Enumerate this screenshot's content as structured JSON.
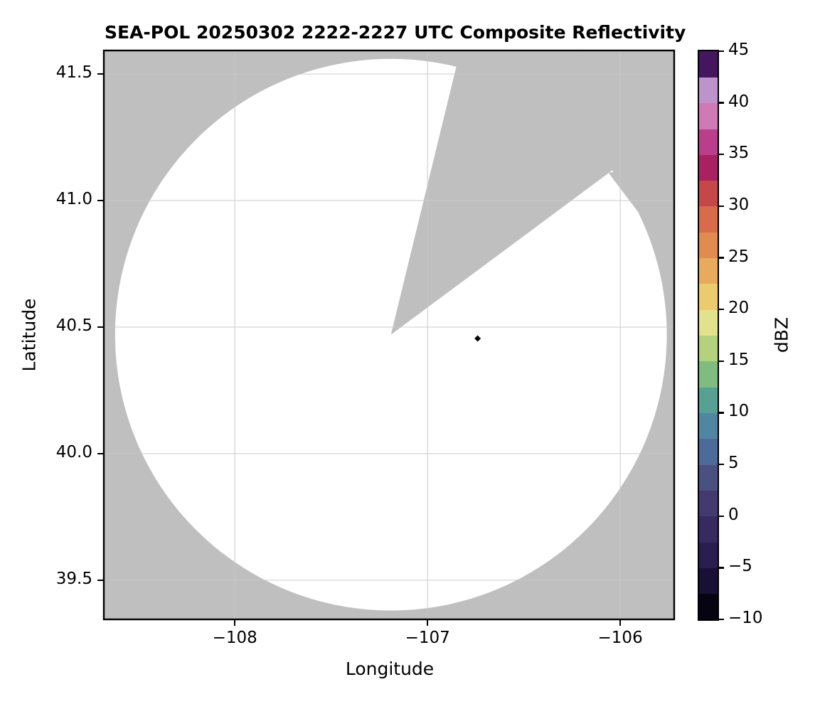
{
  "title": "SEA-POL 20250302 2222-2227 UTC Composite Reflectivity",
  "axes": {
    "xlabel": "Longitude",
    "ylabel": "Latitude",
    "x_range": [
      -108.68,
      -105.72
    ],
    "y_range": [
      39.345,
      41.593
    ],
    "x_ticks": [
      {
        "value": -108,
        "label": "−108"
      },
      {
        "value": -107,
        "label": "−107"
      },
      {
        "value": -106,
        "label": "−106"
      }
    ],
    "y_ticks": [
      {
        "value": 39.5,
        "label": "39.5"
      },
      {
        "value": 40.0,
        "label": "40.0"
      },
      {
        "value": 40.5,
        "label": "40.5"
      },
      {
        "value": 41.0,
        "label": "41.0"
      },
      {
        "value": 41.5,
        "label": "41.5"
      }
    ],
    "grid": true,
    "grid_color": "#c8c8c8",
    "border_color": "#000000"
  },
  "colorbar": {
    "label": "dBZ",
    "min": -10,
    "max": 45,
    "tick_step": 5,
    "ticks": [
      {
        "value": 45,
        "label": "45"
      },
      {
        "value": 40,
        "label": "40"
      },
      {
        "value": 35,
        "label": "35"
      },
      {
        "value": 30,
        "label": "30"
      },
      {
        "value": 25,
        "label": "25"
      },
      {
        "value": 20,
        "label": "20"
      },
      {
        "value": 15,
        "label": "15"
      },
      {
        "value": 10,
        "label": "10"
      },
      {
        "value": 5,
        "label": "5"
      },
      {
        "value": 0,
        "label": "0"
      },
      {
        "value": -5,
        "label": "−5"
      },
      {
        "value": -10,
        "label": "−10"
      }
    ],
    "band_step_dbz": 2.5,
    "band_colors_bottom_to_top": [
      "#060410",
      "#191135",
      "#2a1d50",
      "#372a60",
      "#443a70",
      "#4b5082",
      "#4d6b9a",
      "#5186a3",
      "#57a094",
      "#80bc80",
      "#b4d17e",
      "#e2e28d",
      "#ebcb6e",
      "#e8ab5d",
      "#e28b51",
      "#d76b4a",
      "#c54749",
      "#a92160",
      "#b93f8a",
      "#d07ab5",
      "#bd93cb",
      "#451660"
    ]
  },
  "chart_data": {
    "type": "heatmap",
    "subtype": "radar-composite-reflectivity-map",
    "units": "dBZ",
    "radar": {
      "name": "SEA-POL",
      "center_lon": -107.19,
      "center_lat": 40.47,
      "coverage_radius_deg_lat": 1.09,
      "coverage_fill": "#ffffff",
      "blocked_sector": {
        "az_start_deg": 13.7,
        "az_end_deg": 53.4
      },
      "edge_notch": {
        "points_az_deg": [
          53.4,
          56.2,
          63.5
        ],
        "points_radius_frac": [
          0.983,
          1.12,
          1.0
        ]
      }
    },
    "no_data_color": "#bfbfbf",
    "points": [
      {
        "lon": -106.74,
        "lat": 40.455,
        "marker": "diamond",
        "color": "#050505",
        "approx_value_dbz": -10
      }
    ]
  }
}
